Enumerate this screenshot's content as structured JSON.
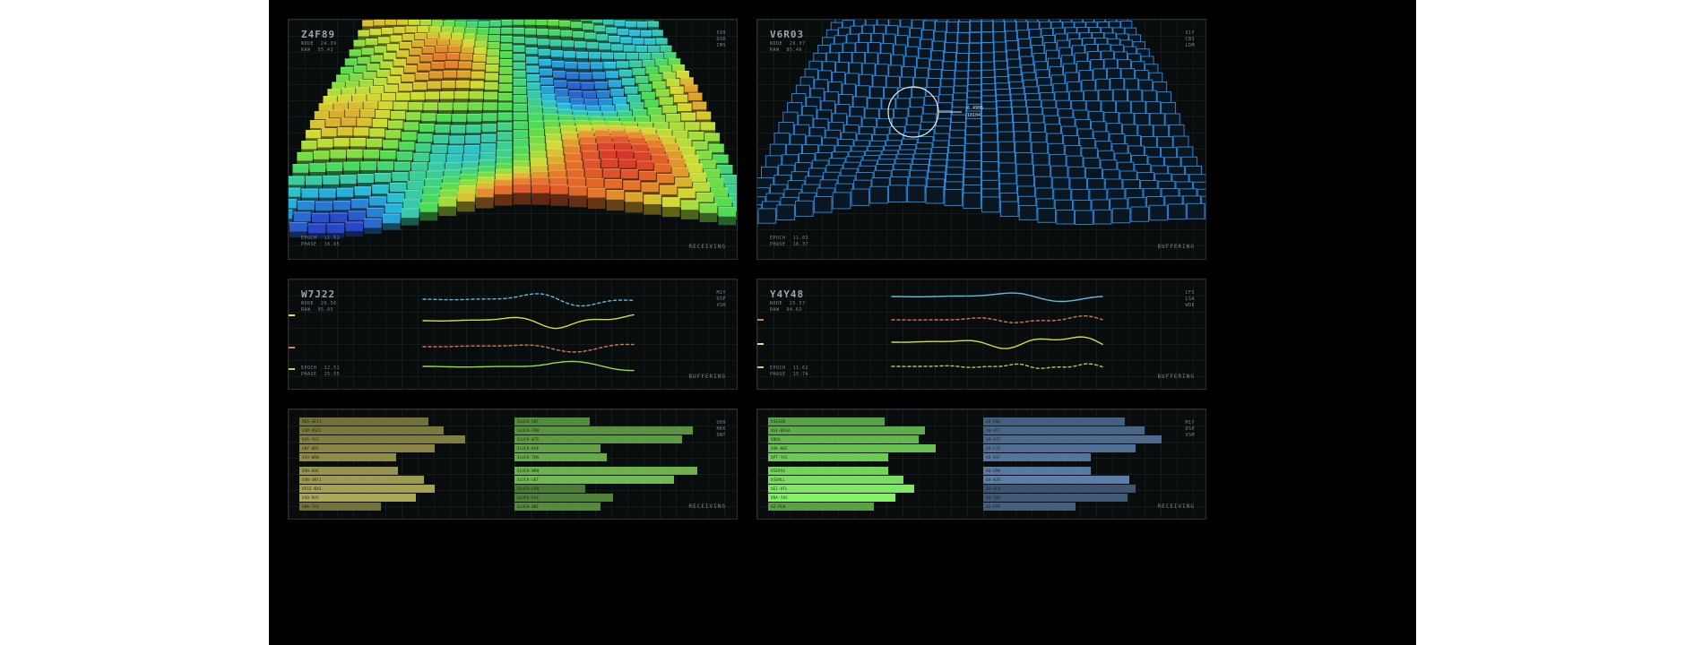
{
  "panels": {
    "terrain_color": {
      "title": "Z4F89",
      "meta": [
        {
          "k": "NODE",
          "v": "24.99"
        },
        {
          "k": "RAW",
          "v": "55.42"
        }
      ],
      "codes": [
        "599",
        "DSR",
        "CMS"
      ],
      "bottom": [
        {
          "k": "EPOCH",
          "v": "11.51"
        },
        {
          "k": "PHASE",
          "v": "16.65"
        }
      ],
      "status": "RECEIVING"
    },
    "terrain_wire": {
      "title": "V6R03",
      "meta": [
        {
          "k": "NODE",
          "v": "26.07"
        },
        {
          "k": "RAW",
          "v": "85.46"
        }
      ],
      "codes": [
        "X1Y",
        "CBS",
        "LDM"
      ],
      "bottom": [
        {
          "k": "EPOCH",
          "v": "11.03"
        },
        {
          "k": "PHASE",
          "v": "16.37"
        }
      ],
      "status": "BUFFERING",
      "callout": [
        "6.4906",
        "10104"
      ]
    },
    "wave_left": {
      "title": "W7J22",
      "meta": [
        {
          "k": "NODE",
          "v": "20.56"
        },
        {
          "k": "RAW",
          "v": "95.05"
        }
      ],
      "codes": [
        "M1Y",
        "DSP",
        "VSM"
      ],
      "bottom": [
        {
          "k": "EPOCH",
          "v": "12.51"
        },
        {
          "k": "PHASE",
          "v": "15.55"
        }
      ],
      "status": "BUFFERING"
    },
    "wave_right": {
      "title": "Y4Y48",
      "meta": [
        {
          "k": "NODE",
          "v": "25.57"
        },
        {
          "k": "RAW",
          "v": "94.65"
        }
      ],
      "codes": [
        "CFI",
        "LSA",
        "WDE"
      ],
      "bottom": [
        {
          "k": "EPOCH",
          "v": "11.62"
        },
        {
          "k": "PHASE",
          "v": "15.74"
        }
      ],
      "status": "BUFFERING"
    },
    "bars_left": {
      "codes": [
        "U89",
        "HKK",
        "ONT"
      ],
      "status": "RECEIVING",
      "col_a": {
        "color": "#8f8c4a",
        "items": [
          {
            "label": "XEA-SEY1",
            "value": 0.6
          },
          {
            "label": "XSM-HSDI",
            "value": 0.67
          },
          {
            "label": "XVA-YCG",
            "value": 0.77
          },
          {
            "label": "XWY-WDS",
            "value": 0.63
          },
          {
            "label": "XFH-WRN",
            "value": 0.45
          },
          {
            "label": "XXH-HOE",
            "value": 0.46
          },
          {
            "label": "XSN-XNT1",
            "value": 0.58
          },
          {
            "label": "XPIE-NXS",
            "value": 0.63
          },
          {
            "label": "XXQ-RUS",
            "value": 0.54
          },
          {
            "label": "XWA-TYS",
            "value": 0.38
          }
        ]
      },
      "col_b": {
        "color": "#5e9a44",
        "items": [
          {
            "label": "SLUCK-XNT",
            "value": 0.35
          },
          {
            "label": "SLUCK-FRW",
            "value": 0.83
          },
          {
            "label": "SLUCK-WTS",
            "value": 0.78
          },
          {
            "label": "SLUCK-RAE",
            "value": 0.4
          },
          {
            "label": "SLUCK-TMS",
            "value": 0.43
          },
          {
            "label": "SLUCK-WRN",
            "value": 0.85
          },
          {
            "label": "SLUCK-UET",
            "value": 0.74
          },
          {
            "label": "SLUCK-LEN",
            "value": 0.33
          },
          {
            "label": "SLUPE-KUE",
            "value": 0.46
          },
          {
            "label": "SLUCK-NNT",
            "value": 0.4
          }
        ]
      }
    },
    "bars_right": {
      "codes": [
        "M1Y",
        "DSP",
        "VSM"
      ],
      "status": "RECEIVING",
      "col_a": {
        "color": "#6fc956",
        "items": [
          {
            "label": "XSE2EN",
            "value": 0.54
          },
          {
            "label": "XSI-WSSA",
            "value": 0.73
          },
          {
            "label": "XDDA",
            "value": 0.7
          },
          {
            "label": "XAK-WEE",
            "value": 0.78
          },
          {
            "label": "XPT-YXS",
            "value": 0.56
          },
          {
            "label": "XSERVS",
            "value": 0.56
          },
          {
            "label": "XSEMLL",
            "value": 0.63
          },
          {
            "label": "XEI-UFL",
            "value": 0.68
          },
          {
            "label": "XRA-YAS",
            "value": 0.59
          },
          {
            "label": "XZ-PLW",
            "value": 0.49
          }
        ]
      },
      "col_b": {
        "color": "#4d6a8e",
        "items": [
          {
            "label": "X8-RNS",
            "value": 0.66
          },
          {
            "label": "X8-VFT",
            "value": 0.75
          },
          {
            "label": "X8-ATT",
            "value": 0.83
          },
          {
            "label": "X8-LTS",
            "value": 0.71
          },
          {
            "label": "X8-VST",
            "value": 0.5
          },
          {
            "label": "X8-XRW",
            "value": 0.5
          },
          {
            "label": "X8-WZR",
            "value": 0.68
          },
          {
            "label": "X8-ALN",
            "value": 0.71
          },
          {
            "label": "X8-SNS",
            "value": 0.67
          },
          {
            "label": "X8-OPR",
            "value": 0.43
          }
        ]
      }
    }
  },
  "colors": {
    "background": "#000000",
    "panel": "#090c0d",
    "wire": "#2f8ce0",
    "wave_cyan": "#6cc3ea",
    "wave_orange": "#e07d4c",
    "wave_yellow": "#e4e45a",
    "wave_green": "#9de45a"
  }
}
